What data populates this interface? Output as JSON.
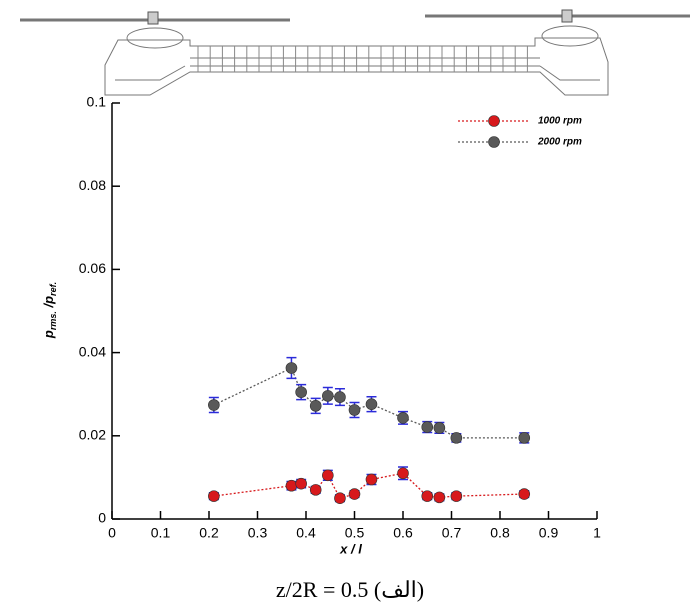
{
  "chart_data": {
    "type": "line",
    "ylabel": {
      "p1": "p",
      "s1": "rms.",
      "p2": " /p",
      "s2": "ref."
    },
    "xlabel": "x / l",
    "caption": "z/2R = 0.5 (الف)",
    "x": [
      0.21,
      0.37,
      0.39,
      0.42,
      0.445,
      0.47,
      0.5,
      0.535,
      0.6,
      0.65,
      0.675,
      0.71,
      0.85
    ],
    "series": [
      {
        "name": "1000 rpm",
        "color": "#d7191c",
        "values": [
          0.0055,
          0.008,
          0.0085,
          0.007,
          0.0105,
          0.005,
          0.006,
          0.0095,
          0.011,
          0.0055,
          0.0052,
          0.0055,
          0.006
        ],
        "errors": [
          0.0008,
          0.001,
          0.001,
          0.0008,
          0.0012,
          0.0008,
          0.0008,
          0.0012,
          0.0015,
          0.0008,
          0.0008,
          0.0008,
          0.0008
        ]
      },
      {
        "name": "2000 rpm",
        "color": "#595959",
        "values": [
          0.0274,
          0.0363,
          0.0305,
          0.0272,
          0.0296,
          0.0293,
          0.0262,
          0.0276,
          0.0243,
          0.0221,
          0.0219,
          0.0195,
          0.0195
        ],
        "errors": [
          0.0018,
          0.0025,
          0.0018,
          0.0018,
          0.002,
          0.002,
          0.0018,
          0.0018,
          0.0015,
          0.0013,
          0.0013,
          0.001,
          0.0012
        ]
      }
    ],
    "error_bar_color": "#2b2bd9",
    "xlim": [
      0,
      1
    ],
    "xticks": [
      0,
      0.1,
      0.2,
      0.3,
      0.4,
      0.5,
      0.6,
      0.7,
      0.8,
      0.9,
      1
    ],
    "ylim": [
      0,
      0.1
    ],
    "yticks": [
      0,
      0.02,
      0.04,
      0.06,
      0.08,
      0.1
    ],
    "legend": "top-right",
    "grid": false
  }
}
